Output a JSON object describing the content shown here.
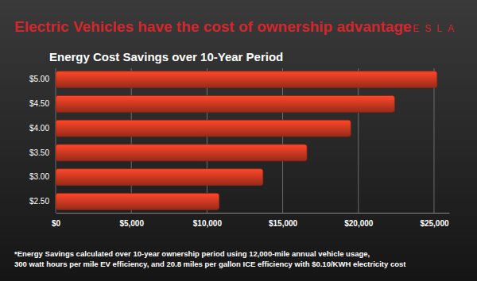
{
  "chart_data": {
    "type": "bar",
    "orientation": "horizontal",
    "title": "Electric Vehicles have the cost of ownership advantage",
    "brand": "TESLA",
    "subtitle": "Energy Cost Savings over 10-Year Period",
    "categories": [
      "$5.00",
      "$4.50",
      "$4.00",
      "$3.50",
      "$3.00",
      "$2.50"
    ],
    "values": [
      25200,
      22400,
      19500,
      16600,
      13700,
      10800
    ],
    "color": "#d23a22",
    "xlim": [
      0,
      26000
    ],
    "xticks": [
      {
        "value": 0,
        "label": "$0"
      },
      {
        "value": 5000,
        "label": "$5,000"
      },
      {
        "value": 10000,
        "label": "$10,000"
      },
      {
        "value": 15000,
        "label": "$15,000"
      },
      {
        "value": 20000,
        "label": "$20,000"
      },
      {
        "value": 25000,
        "label": "$25,000"
      }
    ],
    "grid": true,
    "annotations": [
      "*Energy Savings calculated over 10-year ownership period using 12,000-mile annual vehicle usage,",
      "300 watt hours per mile EV efficiency, and 20.8 miles per gallon ICE efficiency with $0.10/KWH electricity cost"
    ]
  }
}
